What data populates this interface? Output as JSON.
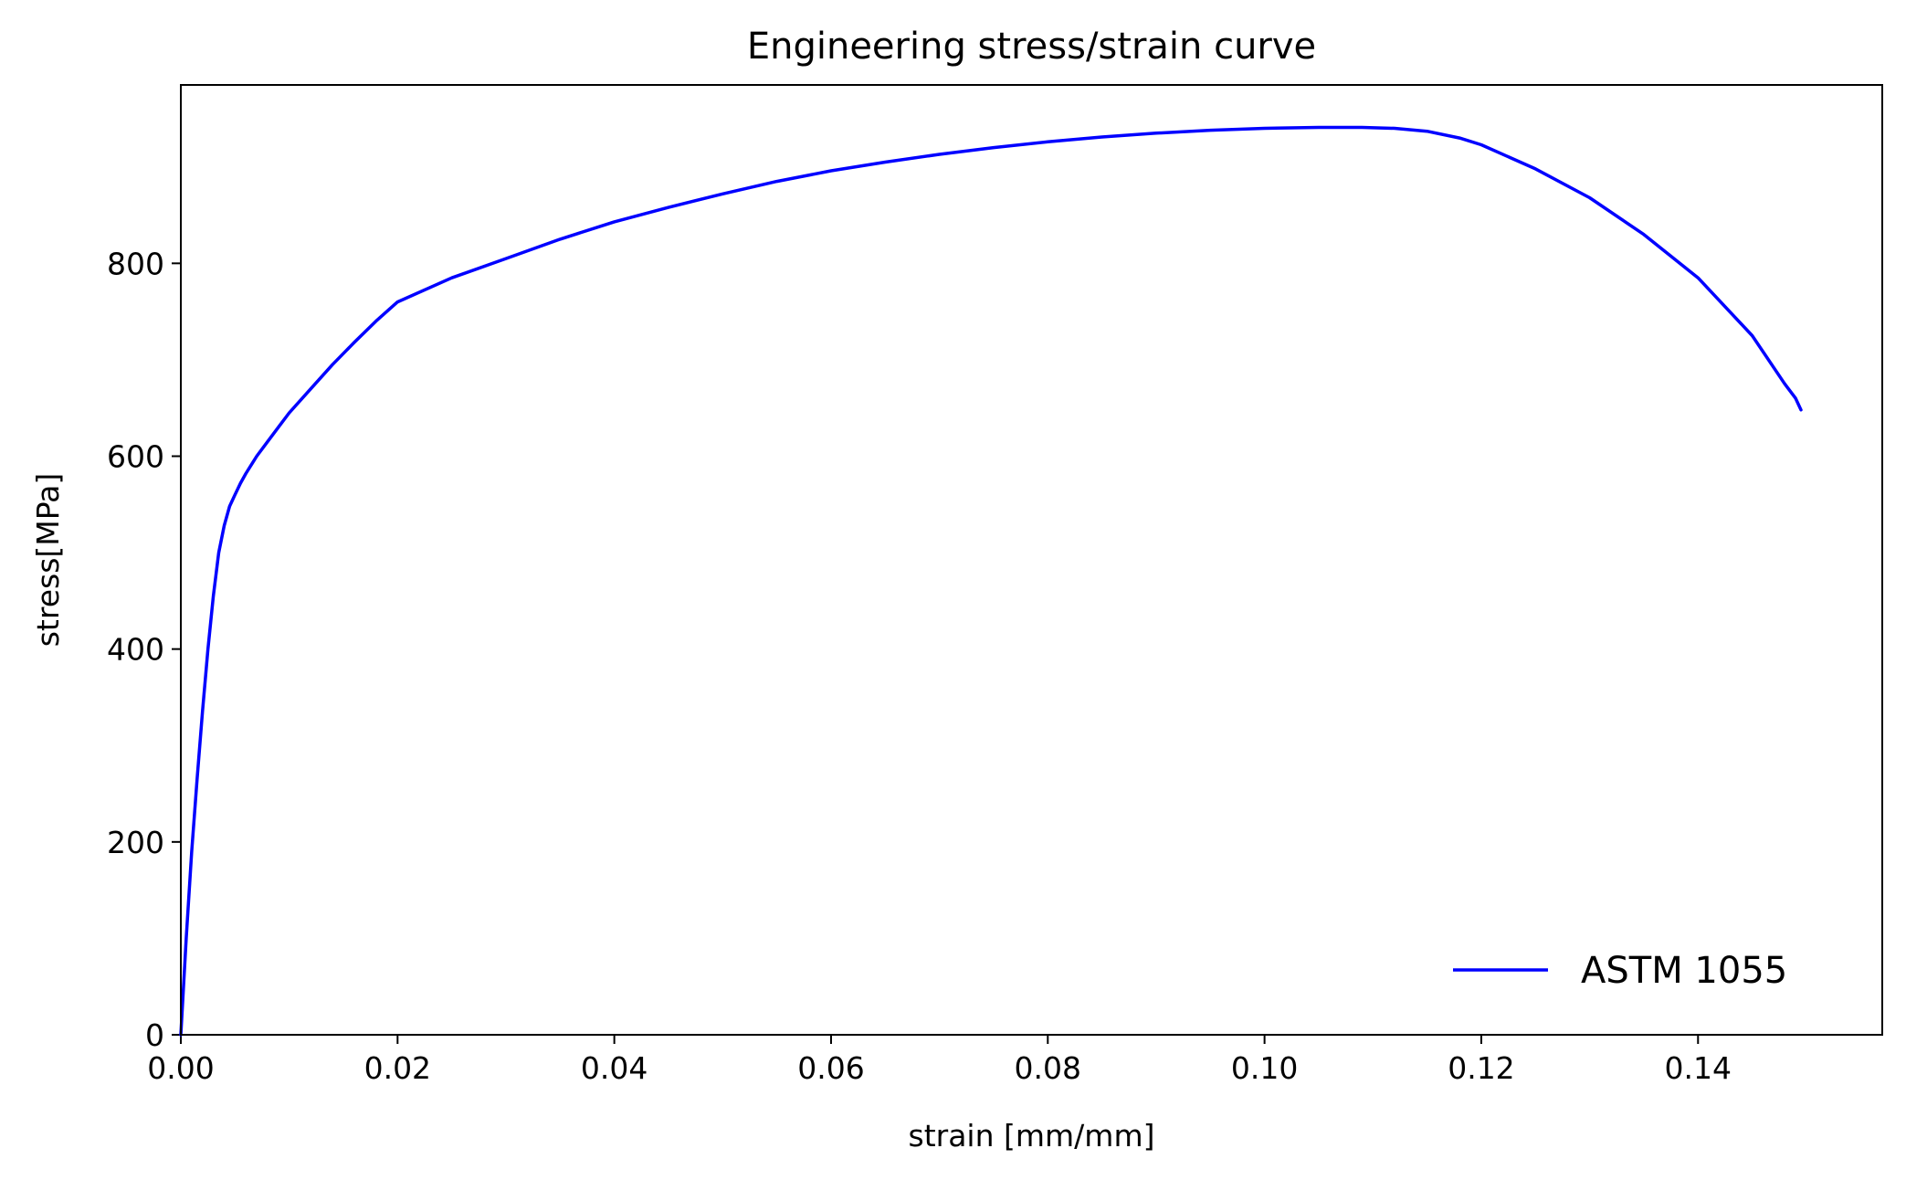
{
  "chart_data": {
    "type": "line",
    "title": "Engineering stress/strain curve",
    "xlabel": "strain [mm/mm]",
    "ylabel": "stress[MPa]",
    "xlim": [
      0.0,
      0.157
    ],
    "ylim": [
      0,
      985
    ],
    "x_ticks": [
      0.0,
      0.02,
      0.04,
      0.06,
      0.08,
      0.1,
      0.12,
      0.14
    ],
    "x_tick_labels": [
      "0.00",
      "0.02",
      "0.04",
      "0.06",
      "0.08",
      "0.10",
      "0.12",
      "0.14"
    ],
    "y_ticks": [
      0,
      200,
      400,
      600,
      800
    ],
    "y_tick_labels": [
      "0",
      "200",
      "400",
      "600",
      "800"
    ],
    "grid": false,
    "legend_position": "lower-right",
    "series": [
      {
        "name": "ASTM 1055",
        "color": "#0000ff",
        "x": [
          0.0,
          0.0005,
          0.001,
          0.0015,
          0.002,
          0.0025,
          0.003,
          0.0035,
          0.004,
          0.0045,
          0.005,
          0.0055,
          0.006,
          0.007,
          0.008,
          0.009,
          0.01,
          0.012,
          0.014,
          0.016,
          0.018,
          0.02,
          0.025,
          0.03,
          0.035,
          0.04,
          0.045,
          0.05,
          0.055,
          0.06,
          0.065,
          0.07,
          0.075,
          0.08,
          0.085,
          0.09,
          0.095,
          0.1,
          0.105,
          0.109,
          0.112,
          0.115,
          0.118,
          0.12,
          0.125,
          0.13,
          0.135,
          0.14,
          0.145,
          0.148,
          0.149,
          0.1495
        ],
        "y": [
          0,
          100,
          190,
          265,
          335,
          400,
          455,
          500,
          528,
          548,
          560,
          572,
          582,
          600,
          615,
          630,
          645,
          670,
          695,
          718,
          740,
          760,
          785,
          805,
          825,
          843,
          858,
          872,
          885,
          896,
          905,
          913,
          920,
          926,
          931,
          935,
          938,
          940,
          941,
          941,
          940,
          937,
          930,
          923,
          898,
          868,
          830,
          785,
          725,
          675,
          660,
          648
        ]
      }
    ]
  }
}
